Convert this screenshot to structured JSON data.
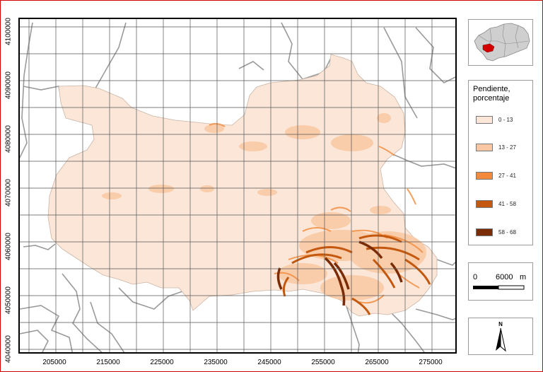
{
  "map": {
    "y_ticks": [
      "4100000",
      "4090000",
      "4080000",
      "4070000",
      "4060000",
      "4050000",
      "4040000"
    ],
    "x_ticks": [
      "205000",
      "215000",
      "225000",
      "235000",
      "245000",
      "255000",
      "265000",
      "275000"
    ],
    "colors": {
      "frame_accent": "#d40000",
      "study_area": "#fbe6d8",
      "region_lines": "#9a9a9a",
      "grid_lines": "#555555"
    }
  },
  "inset": {
    "highlight_color": "#d40000",
    "region_color": "#cfcfcf"
  },
  "legend": {
    "title_line1": "Pendiente,",
    "title_line2": "porcentaje",
    "items": [
      {
        "label": "0 - 13",
        "color": "#fbe6d8"
      },
      {
        "label": "13 - 27",
        "color": "#f9c8a2"
      },
      {
        "label": "27 - 41",
        "color": "#f28a3a"
      },
      {
        "label": "41 - 58",
        "color": "#c4580e"
      },
      {
        "label": "58 - 68",
        "color": "#7a2c06"
      }
    ]
  },
  "scalebar": {
    "start_label": "0",
    "end_label": "6000",
    "unit": "m"
  },
  "north_arrow": {
    "label": "N"
  }
}
